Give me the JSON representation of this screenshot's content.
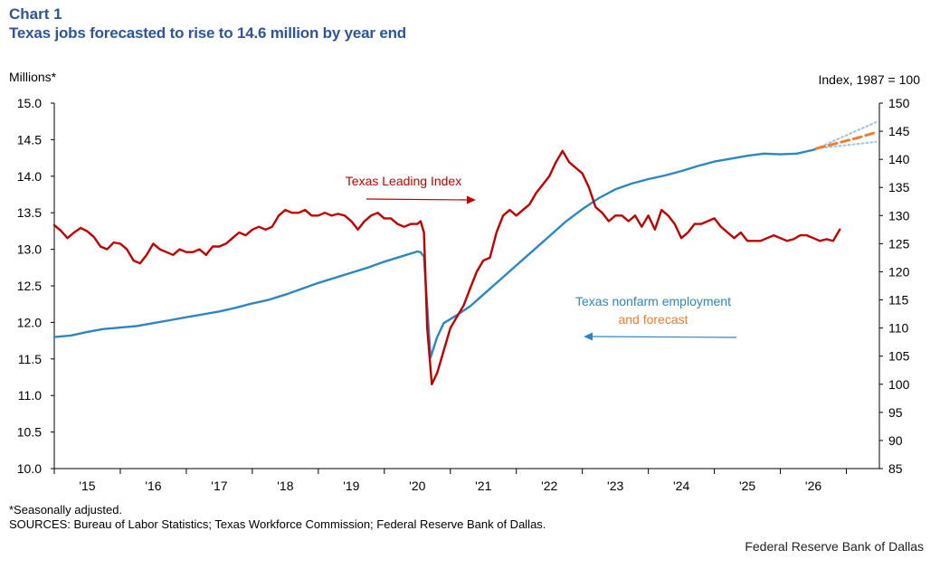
{
  "header": {
    "chart_label": "Chart 1",
    "title": "Texas jobs forecasted to rise to 14.6 million by year end"
  },
  "chart_data": {
    "type": "line",
    "title": "Texas jobs forecasted to rise to 14.6 million by year end",
    "ylabel_left": "Millions*",
    "ylabel_right": "Index,  1987 = 100",
    "ylim_left": [
      10.0,
      15.0
    ],
    "ylim_right": [
      85,
      150
    ],
    "yticks_left": [
      "10.0",
      "10.5",
      "11.0",
      "11.5",
      "12.0",
      "12.5",
      "13.0",
      "13.5",
      "14.0",
      "14.5",
      "15.0"
    ],
    "yticks_right": [
      "85",
      "90",
      "95",
      "100",
      "105",
      "110",
      "115",
      "120",
      "125",
      "130",
      "135",
      "140",
      "145",
      "150"
    ],
    "xlim": [
      2014.5,
      2027.0
    ],
    "x_ticks": [
      {
        "label": "'15",
        "x": 2015.0
      },
      {
        "label": "'16",
        "x": 2016.0
      },
      {
        "label": "'17",
        "x": 2017.0
      },
      {
        "label": "'18",
        "x": 2018.0
      },
      {
        "label": "'19",
        "x": 2019.0
      },
      {
        "label": "'20",
        "x": 2020.0
      },
      {
        "label": "'21",
        "x": 2021.0
      },
      {
        "label": "'22",
        "x": 2022.0
      },
      {
        "label": "'23",
        "x": 2023.0
      },
      {
        "label": "'24",
        "x": 2024.0
      },
      {
        "label": "'25",
        "x": 2025.0
      },
      {
        "label": "'26",
        "x": 2026.0
      }
    ],
    "series": [
      {
        "name": "Texas nonfarm employment",
        "axis": "left",
        "color": "#2e86c1",
        "style": "solid",
        "points": [
          [
            2014.5,
            11.8
          ],
          [
            2014.75,
            11.82
          ],
          [
            2015.0,
            11.87
          ],
          [
            2015.25,
            11.91
          ],
          [
            2015.5,
            11.93
          ],
          [
            2015.75,
            11.95
          ],
          [
            2016.0,
            11.99
          ],
          [
            2016.25,
            12.03
          ],
          [
            2016.5,
            12.07
          ],
          [
            2016.75,
            12.11
          ],
          [
            2017.0,
            12.15
          ],
          [
            2017.25,
            12.2
          ],
          [
            2017.5,
            12.26
          ],
          [
            2017.75,
            12.31
          ],
          [
            2018.0,
            12.38
          ],
          [
            2018.25,
            12.46
          ],
          [
            2018.5,
            12.54
          ],
          [
            2018.75,
            12.61
          ],
          [
            2019.0,
            12.68
          ],
          [
            2019.25,
            12.75
          ],
          [
            2019.5,
            12.83
          ],
          [
            2019.75,
            12.9
          ],
          [
            2020.0,
            12.97
          ],
          [
            2020.05,
            12.96
          ],
          [
            2020.1,
            12.9
          ],
          [
            2020.2,
            11.52
          ],
          [
            2020.3,
            11.8
          ],
          [
            2020.4,
            11.99
          ],
          [
            2020.6,
            12.1
          ],
          [
            2020.8,
            12.22
          ],
          [
            2021.0,
            12.38
          ],
          [
            2021.25,
            12.58
          ],
          [
            2021.5,
            12.78
          ],
          [
            2021.75,
            12.98
          ],
          [
            2022.0,
            13.18
          ],
          [
            2022.25,
            13.38
          ],
          [
            2022.5,
            13.55
          ],
          [
            2022.75,
            13.7
          ],
          [
            2023.0,
            13.82
          ],
          [
            2023.25,
            13.9
          ],
          [
            2023.5,
            13.96
          ],
          [
            2023.75,
            14.01
          ],
          [
            2024.0,
            14.07
          ],
          [
            2024.25,
            14.14
          ],
          [
            2024.5,
            14.2
          ],
          [
            2024.75,
            14.24
          ],
          [
            2025.0,
            14.28
          ],
          [
            2025.25,
            14.31
          ],
          [
            2025.5,
            14.3
          ],
          [
            2025.75,
            14.31
          ],
          [
            2026.0,
            14.36
          ],
          [
            2026.05,
            14.38
          ]
        ]
      },
      {
        "name": "Texas Leading Index",
        "axis": "right",
        "color": "#c00000",
        "style": "solid",
        "points": [
          [
            2014.5,
            128.3
          ],
          [
            2014.6,
            127.3
          ],
          [
            2014.7,
            126.0
          ],
          [
            2014.8,
            127.0
          ],
          [
            2014.9,
            127.8
          ],
          [
            2015.0,
            127.2
          ],
          [
            2015.1,
            126.2
          ],
          [
            2015.2,
            124.5
          ],
          [
            2015.3,
            124.0
          ],
          [
            2015.4,
            125.2
          ],
          [
            2015.5,
            125.0
          ],
          [
            2015.6,
            124.0
          ],
          [
            2015.7,
            122.0
          ],
          [
            2015.8,
            121.5
          ],
          [
            2015.9,
            123.0
          ],
          [
            2016.0,
            125.0
          ],
          [
            2016.1,
            124.0
          ],
          [
            2016.2,
            123.5
          ],
          [
            2016.3,
            123.0
          ],
          [
            2016.4,
            124.0
          ],
          [
            2016.5,
            123.5
          ],
          [
            2016.6,
            123.5
          ],
          [
            2016.7,
            124.0
          ],
          [
            2016.8,
            123.0
          ],
          [
            2016.9,
            124.5
          ],
          [
            2017.0,
            124.5
          ],
          [
            2017.1,
            125.0
          ],
          [
            2017.2,
            126.0
          ],
          [
            2017.3,
            127.0
          ],
          [
            2017.4,
            126.5
          ],
          [
            2017.5,
            127.5
          ],
          [
            2017.6,
            128.0
          ],
          [
            2017.7,
            127.5
          ],
          [
            2017.8,
            128.0
          ],
          [
            2017.9,
            130.0
          ],
          [
            2018.0,
            131.0
          ],
          [
            2018.1,
            130.5
          ],
          [
            2018.2,
            130.5
          ],
          [
            2018.3,
            131.0
          ],
          [
            2018.4,
            130.0
          ],
          [
            2018.5,
            130.0
          ],
          [
            2018.6,
            130.5
          ],
          [
            2018.7,
            130.0
          ],
          [
            2018.8,
            130.3
          ],
          [
            2018.9,
            130.0
          ],
          [
            2019.0,
            129.0
          ],
          [
            2019.1,
            127.5
          ],
          [
            2019.2,
            129.0
          ],
          [
            2019.3,
            130.0
          ],
          [
            2019.4,
            130.5
          ],
          [
            2019.5,
            129.5
          ],
          [
            2019.6,
            129.5
          ],
          [
            2019.7,
            128.5
          ],
          [
            2019.8,
            128.0
          ],
          [
            2019.9,
            128.5
          ],
          [
            2020.0,
            128.5
          ],
          [
            2020.05,
            129.0
          ],
          [
            2020.1,
            127.0
          ],
          [
            2020.15,
            110.0
          ],
          [
            2020.22,
            100.0
          ],
          [
            2020.3,
            102.0
          ],
          [
            2020.4,
            106.0
          ],
          [
            2020.5,
            110.0
          ],
          [
            2020.6,
            112.0
          ],
          [
            2020.7,
            114.0
          ],
          [
            2020.8,
            117.0
          ],
          [
            2020.9,
            120.0
          ],
          [
            2021.0,
            122.0
          ],
          [
            2021.1,
            122.5
          ],
          [
            2021.2,
            127.0
          ],
          [
            2021.3,
            130.0
          ],
          [
            2021.4,
            131.0
          ],
          [
            2021.5,
            130.0
          ],
          [
            2021.6,
            131.0
          ],
          [
            2021.7,
            132.0
          ],
          [
            2021.8,
            134.0
          ],
          [
            2021.9,
            135.5
          ],
          [
            2022.0,
            137.0
          ],
          [
            2022.1,
            139.5
          ],
          [
            2022.2,
            141.5
          ],
          [
            2022.3,
            139.5
          ],
          [
            2022.4,
            138.5
          ],
          [
            2022.5,
            137.5
          ],
          [
            2022.6,
            135.0
          ],
          [
            2022.7,
            131.5
          ],
          [
            2022.8,
            130.5
          ],
          [
            2022.9,
            129.0
          ],
          [
            2023.0,
            130.0
          ],
          [
            2023.1,
            130.0
          ],
          [
            2023.2,
            129.0
          ],
          [
            2023.3,
            130.0
          ],
          [
            2023.4,
            128.0
          ],
          [
            2023.5,
            130.0
          ],
          [
            2023.6,
            127.5
          ],
          [
            2023.7,
            131.0
          ],
          [
            2023.8,
            130.0
          ],
          [
            2023.9,
            128.5
          ],
          [
            2024.0,
            126.0
          ],
          [
            2024.1,
            127.0
          ],
          [
            2024.2,
            128.5
          ],
          [
            2024.3,
            128.5
          ],
          [
            2024.4,
            129.0
          ],
          [
            2024.5,
            129.5
          ],
          [
            2024.6,
            128.0
          ],
          [
            2024.7,
            127.0
          ],
          [
            2024.8,
            126.0
          ],
          [
            2024.9,
            127.0
          ],
          [
            2025.0,
            125.5
          ],
          [
            2025.1,
            125.5
          ],
          [
            2025.2,
            125.5
          ],
          [
            2025.3,
            126.0
          ],
          [
            2025.4,
            126.5
          ],
          [
            2025.5,
            126.0
          ],
          [
            2025.6,
            125.5
          ],
          [
            2025.7,
            125.8
          ],
          [
            2025.8,
            126.5
          ],
          [
            2025.9,
            126.5
          ],
          [
            2026.0,
            126.0
          ],
          [
            2026.1,
            125.5
          ],
          [
            2026.2,
            125.8
          ],
          [
            2026.3,
            125.5
          ],
          [
            2026.4,
            127.5
          ]
        ]
      },
      {
        "name": "forecast",
        "axis": "left",
        "color": "#ed7d31",
        "style": "dashed",
        "points": [
          [
            2026.05,
            14.38
          ],
          [
            2026.35,
            14.45
          ],
          [
            2026.65,
            14.52
          ],
          [
            2026.95,
            14.6
          ]
        ]
      },
      {
        "name": "forecast upper band",
        "axis": "left",
        "color": "#9dc3e6",
        "style": "dotted",
        "points": [
          [
            2026.05,
            14.38
          ],
          [
            2026.95,
            14.74
          ]
        ]
      },
      {
        "name": "forecast lower band",
        "axis": "left",
        "color": "#9dc3e6",
        "style": "dotted",
        "points": [
          [
            2026.05,
            14.38
          ],
          [
            2026.95,
            14.47
          ]
        ]
      }
    ],
    "annotations": {
      "leading_index": "Texas  Leading Index",
      "employment": "Texas  nonfarm  employment",
      "forecast": "and forecast"
    }
  },
  "footer": {
    "footnote": "*Seasonally adjusted.",
    "sources": "SOURCES: Bureau of Labor Statistics; Texas Workforce Commission; Federal Reserve Bank of Dallas.",
    "credit": "Federal Reserve Bank of Dallas"
  }
}
